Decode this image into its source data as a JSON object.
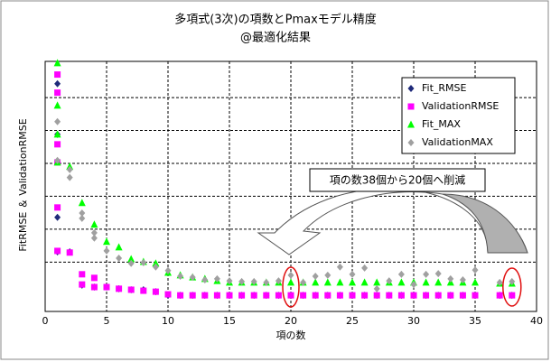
{
  "chart_data": {
    "type": "scatter",
    "title": "多項式(3次)の項数とPmaxモデル精度",
    "subtitle": "@最適化結果",
    "x_label": "項の数",
    "y_label": "FitRMSE ＆ ValidationRMSE",
    "annotation": "項の数38個から20個へ削減",
    "xlim": [
      0,
      40
    ],
    "xticks": [
      0,
      5,
      10,
      15,
      20,
      25,
      30,
      35,
      40
    ],
    "ylim": [
      0,
      7.6
    ],
    "ygrid": [
      1.5,
      2.5,
      3.5,
      4.5,
      5.5,
      6.5
    ],
    "grid": true,
    "legend": "upper right",
    "series": [
      {
        "name": "Fit_RMSE",
        "color": "#1f2a7a",
        "marker": "diamond",
        "x": [
          1,
          1,
          1,
          1,
          2,
          3,
          4,
          5,
          6,
          7,
          8,
          9,
          10,
          11,
          12,
          13,
          14,
          15,
          16,
          17,
          18,
          19,
          20,
          21,
          22,
          23,
          24,
          25,
          26,
          27,
          28,
          29,
          30,
          31,
          32,
          33,
          34,
          35,
          37,
          38
        ],
        "values": [
          6.92,
          5.38,
          2.86,
          1.81,
          1.81,
          0.8,
          0.74,
          0.74,
          0.69,
          0.66,
          0.66,
          0.6,
          0.49,
          0.49,
          0.49,
          0.49,
          0.49,
          0.49,
          0.49,
          0.49,
          0.49,
          0.49,
          0.49,
          0.49,
          0.49,
          0.49,
          0.49,
          0.49,
          0.49,
          0.49,
          0.49,
          0.49,
          0.49,
          0.49,
          0.49,
          0.49,
          0.49,
          0.49,
          0.49,
          0.49
        ]
      },
      {
        "name": "ValidationRMSE",
        "color": "#ff00ff",
        "marker": "square",
        "x": [
          1,
          1,
          1,
          1,
          1,
          1,
          2,
          3,
          3,
          4,
          4,
          5,
          6,
          7,
          8,
          9,
          10,
          11,
          12,
          13,
          14,
          15,
          16,
          17,
          18,
          19,
          20,
          21,
          22,
          23,
          24,
          25,
          26,
          27,
          28,
          29,
          30,
          31,
          32,
          33,
          34,
          35,
          37,
          38
        ],
        "values": [
          7.2,
          6.65,
          5.08,
          4.53,
          3.16,
          1.84,
          1.79,
          1.13,
          0.82,
          1.02,
          0.74,
          0.74,
          0.69,
          0.66,
          0.63,
          0.6,
          0.52,
          0.49,
          0.49,
          0.49,
          0.49,
          0.49,
          0.49,
          0.49,
          0.49,
          0.49,
          0.49,
          0.49,
          0.49,
          0.49,
          0.49,
          0.49,
          0.49,
          0.49,
          0.49,
          0.49,
          0.49,
          0.49,
          0.49,
          0.49,
          0.49,
          0.49,
          0.49,
          0.49
        ]
      },
      {
        "name": "Fit_MAX",
        "color": "#00ff00",
        "marker": "triangle",
        "x": [
          1,
          1,
          1,
          1,
          2,
          3,
          4,
          5,
          6,
          7,
          8,
          9,
          10,
          11,
          12,
          13,
          14,
          15,
          16,
          17,
          18,
          19,
          20,
          21,
          22,
          23,
          24,
          25,
          26,
          27,
          28,
          29,
          30,
          31,
          32,
          33,
          34,
          35,
          37,
          38
        ],
        "values": [
          7.55,
          6.26,
          5.38,
          4.53,
          4.4,
          3.3,
          2.64,
          2.12,
          1.95,
          1.59,
          1.51,
          1.46,
          1.18,
          1.1,
          1.04,
          0.99,
          0.93,
          0.88,
          0.88,
          0.88,
          0.88,
          0.88,
          0.88,
          0.88,
          0.88,
          0.88,
          0.88,
          0.88,
          0.88,
          0.88,
          0.88,
          0.88,
          0.88,
          0.88,
          0.88,
          0.88,
          0.88,
          0.88,
          0.85,
          0.85
        ]
      },
      {
        "name": "ValidationMAX",
        "color": "#a0a0a0",
        "marker": "diamond",
        "x": [
          1,
          1,
          2,
          2,
          3,
          3,
          4,
          4,
          5,
          6,
          7,
          8,
          9,
          10,
          11,
          12,
          13,
          14,
          15,
          16,
          17,
          18,
          19,
          20,
          21,
          22,
          23,
          24,
          25,
          26,
          27,
          28,
          29,
          30,
          31,
          32,
          33,
          34,
          35,
          37,
          38
        ],
        "values": [
          5.77,
          4.59,
          4.31,
          4.07,
          2.99,
          2.83,
          2.39,
          2.23,
          1.84,
          1.62,
          1.46,
          1.48,
          1.35,
          1.24,
          1.07,
          1.04,
          0.96,
          0.99,
          0.93,
          0.91,
          0.91,
          0.88,
          0.93,
          1.1,
          0.88,
          1.07,
          1.1,
          1.35,
          1.13,
          1.32,
          0.69,
          0.93,
          1.13,
          0.82,
          1.13,
          1.15,
          0.99,
          0.96,
          1.26,
          0.88,
          0.91
        ]
      }
    ]
  }
}
